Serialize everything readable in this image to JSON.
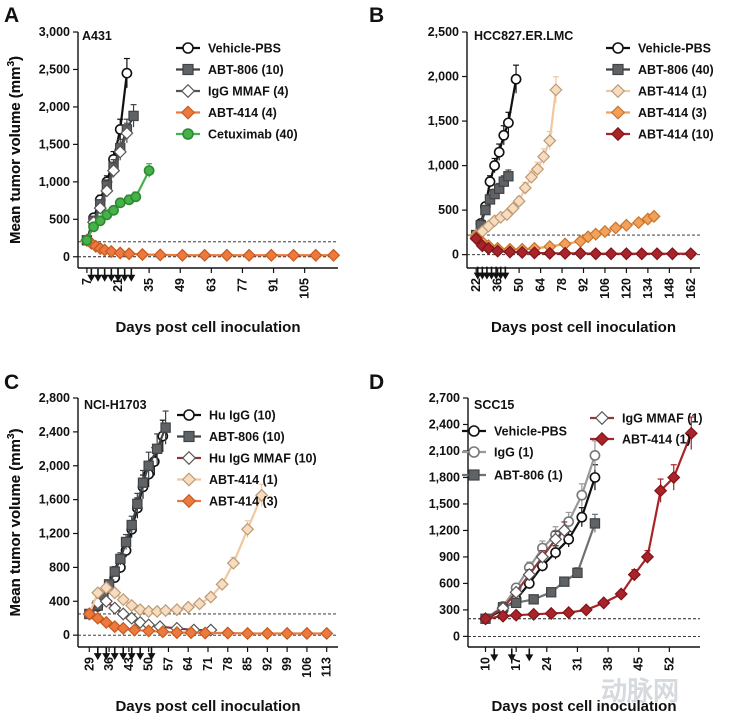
{
  "chart_data": [
    {
      "type": "line",
      "panel": "A",
      "cell_line": "A431",
      "xlabel": "Days post cell inoculation",
      "ylabel": "Mean tumor volume (mm",
      "ylabel_sup": "3",
      "ylabel_close": ")",
      "xlim": [
        3,
        120
      ],
      "ylim": [
        -150,
        3000
      ],
      "xticks": [
        7,
        21,
        35,
        49,
        63,
        77,
        91,
        105
      ],
      "yticks": [
        0,
        500,
        1000,
        1500,
        2000,
        2500,
        3000
      ],
      "ytick_labels": [
        "0",
        "500",
        "1,000",
        "1,500",
        "2,000",
        "2,500",
        "3,000"
      ],
      "threshold": 200,
      "dosing_days": [
        9,
        12,
        15,
        18,
        21,
        24,
        27
      ],
      "legend": "top-right",
      "series": [
        {
          "name": "Vehicle-PBS",
          "marker": "circle",
          "fill": "#ffffff",
          "stroke": "#111111",
          "line": "#111111",
          "x": [
            7,
            10,
            13,
            16,
            19,
            22,
            25
          ],
          "y": [
            220,
            520,
            760,
            1000,
            1300,
            1700,
            2450
          ]
        },
        {
          "name": "ABT-806 (10)",
          "marker": "square",
          "fill": "#606366",
          "stroke": "#404346",
          "line": "#404346",
          "x": [
            7,
            10,
            13,
            16,
            19,
            22,
            25,
            28
          ],
          "y": [
            220,
            480,
            700,
            950,
            1200,
            1450,
            1700,
            1880
          ]
        },
        {
          "name": "IgG MMAF (4)",
          "marker": "diamond",
          "fill": "#ffffff",
          "stroke": "#555555",
          "line": "#555555",
          "x": [
            7,
            10,
            13,
            16,
            19,
            22,
            25
          ],
          "y": [
            220,
            460,
            650,
            880,
            1150,
            1400,
            1650
          ]
        },
        {
          "name": "ABT-414 (4)",
          "marker": "diamond",
          "fill": "#ec7a3e",
          "stroke": "#c55a20",
          "line": "#ec7a3e",
          "x": [
            7,
            9,
            11,
            13,
            15,
            18,
            22,
            26,
            32,
            40,
            50,
            60,
            70,
            80,
            90,
            100,
            110,
            118
          ],
          "y": [
            220,
            180,
            140,
            110,
            90,
            70,
            50,
            40,
            30,
            25,
            20,
            20,
            20,
            20,
            20,
            20,
            20,
            20
          ]
        },
        {
          "name": "Cetuximab (40)",
          "marker": "circle",
          "fill": "#44b149",
          "stroke": "#2d8a33",
          "line": "#44b149",
          "x": [
            7,
            10,
            13,
            16,
            19,
            22,
            26,
            29,
            35
          ],
          "y": [
            220,
            400,
            480,
            560,
            620,
            720,
            760,
            800,
            1150
          ]
        }
      ]
    },
    {
      "type": "line",
      "panel": "B",
      "cell_line": "HCC827.ER.LMC",
      "xlabel": "Days post cell inoculation",
      "ylabel": "Mean tumor volume (mm",
      "ylabel_sup": "3",
      "ylabel_close": ")",
      "xlim": [
        16,
        168
      ],
      "ylim": [
        -150,
        2500
      ],
      "xticks": [
        22,
        36,
        50,
        64,
        78,
        92,
        106,
        120,
        134,
        148,
        162
      ],
      "yticks": [
        0,
        500,
        1000,
        1500,
        2000,
        2500
      ],
      "ytick_labels": [
        "0",
        "500",
        "1,000",
        "1,500",
        "2,000",
        "2,500"
      ],
      "threshold": 220,
      "dosing_days": [
        23,
        26,
        29,
        32,
        35,
        38,
        41
      ],
      "legend": "top-right",
      "series": [
        {
          "name": "Vehicle-PBS",
          "marker": "circle",
          "fill": "#ffffff",
          "stroke": "#111111",
          "line": "#111111",
          "x": [
            22,
            25,
            28,
            31,
            34,
            37,
            40,
            43,
            48
          ],
          "y": [
            220,
            350,
            540,
            820,
            1000,
            1150,
            1340,
            1480,
            1970
          ]
        },
        {
          "name": "ABT-806 (40)",
          "marker": "square",
          "fill": "#606366",
          "stroke": "#404346",
          "line": "#404346",
          "x": [
            22,
            25,
            28,
            31,
            34,
            37,
            40,
            43
          ],
          "y": [
            220,
            330,
            500,
            620,
            680,
            740,
            820,
            880
          ]
        },
        {
          "name": "ABT-414 (1)",
          "marker": "diamond",
          "fill": "#f8dcbf",
          "stroke": "#bb9a76",
          "line": "#f0c8a0",
          "x": [
            22,
            26,
            30,
            34,
            38,
            42,
            46,
            50,
            54,
            58,
            62,
            66,
            70,
            74
          ],
          "y": [
            220,
            260,
            320,
            380,
            420,
            450,
            520,
            600,
            750,
            870,
            960,
            1100,
            1280,
            1850
          ]
        },
        {
          "name": "ABT-414 (3)",
          "marker": "diamond",
          "fill": "#f2a05a",
          "stroke": "#c6742e",
          "line": "#f2a05a",
          "x": [
            22,
            26,
            30,
            36,
            44,
            52,
            60,
            70,
            80,
            90,
            95,
            100,
            106,
            113,
            120,
            128,
            134,
            138
          ],
          "y": [
            200,
            140,
            100,
            70,
            60,
            60,
            70,
            90,
            120,
            150,
            200,
            230,
            260,
            300,
            330,
            360,
            400,
            430
          ]
        },
        {
          "name": "ABT-414 (10)",
          "marker": "diamond",
          "fill": "#a9232a",
          "stroke": "#7e1519",
          "line": "#a9232a",
          "x": [
            22,
            26,
            30,
            36,
            44,
            52,
            60,
            70,
            80,
            90,
            100,
            110,
            120,
            130,
            140,
            150,
            162
          ],
          "y": [
            180,
            100,
            70,
            40,
            30,
            25,
            20,
            15,
            15,
            15,
            10,
            10,
            10,
            10,
            10,
            10,
            10
          ]
        }
      ]
    },
    {
      "type": "line",
      "panel": "C",
      "cell_line": "NCI-H1703",
      "xlabel": "Days post cell inoculation",
      "ylabel": "Mean tumor volume (mm",
      "ylabel_sup": "3",
      "ylabel_close": ")",
      "xlim": [
        25,
        117
      ],
      "ylim": [
        -140,
        2800
      ],
      "xticks": [
        29,
        36,
        43,
        50,
        57,
        64,
        71,
        78,
        85,
        92,
        99,
        106,
        113
      ],
      "yticks": [
        0,
        400,
        800,
        1200,
        1600,
        2000,
        2400,
        2800
      ],
      "ytick_labels": [
        "0",
        "400",
        "800",
        "1,200",
        "1,600",
        "2,000",
        "2,400",
        "2,800"
      ],
      "threshold": 250,
      "dosing_days": [
        32,
        35,
        38,
        41,
        44,
        47,
        51
      ],
      "legend": "top-right",
      "series": [
        {
          "name": "Hu IgG (10)",
          "marker": "circle",
          "fill": "#ffffff",
          "stroke": "#111111",
          "line": "#111111",
          "x": [
            29,
            32,
            34,
            36,
            38,
            40,
            42,
            44,
            46,
            48,
            50,
            52,
            55
          ],
          "y": [
            250,
            340,
            420,
            550,
            680,
            800,
            1000,
            1250,
            1500,
            1750,
            1900,
            2050,
            2350
          ]
        },
        {
          "name": "ABT-806 (10)",
          "marker": "square",
          "fill": "#606366",
          "stroke": "#404346",
          "line": "#404346",
          "x": [
            29,
            32,
            34,
            36,
            38,
            40,
            42,
            44,
            46,
            48,
            50,
            53,
            56
          ],
          "y": [
            250,
            350,
            450,
            600,
            750,
            900,
            1100,
            1300,
            1550,
            1800,
            2000,
            2200,
            2450
          ]
        },
        {
          "name": "Hu IgG MMAF (10)",
          "marker": "diamond",
          "fill": "#ffffff",
          "stroke": "#555555",
          "line": "#8a3a3a",
          "x": [
            29,
            32,
            35,
            38,
            41,
            44,
            47,
            50,
            54,
            60,
            66,
            72
          ],
          "y": [
            250,
            380,
            400,
            320,
            250,
            200,
            150,
            120,
            100,
            80,
            60,
            60
          ]
        },
        {
          "name": "ABT-414 (1)",
          "marker": "diamond",
          "fill": "#f8dcbf",
          "stroke": "#bb9a76",
          "line": "#f0c8a0",
          "x": [
            29,
            32,
            35,
            38,
            41,
            44,
            47,
            50,
            53,
            56,
            60,
            64,
            68,
            72,
            76,
            80,
            85,
            90
          ],
          "y": [
            250,
            500,
            560,
            500,
            420,
            350,
            300,
            280,
            280,
            290,
            300,
            330,
            370,
            450,
            600,
            850,
            1250,
            1650
          ]
        },
        {
          "name": "ABT-414 (3)",
          "marker": "diamond",
          "fill": "#ec7a3e",
          "stroke": "#c55a20",
          "line": "#ec7a3e",
          "x": [
            29,
            32,
            35,
            38,
            41,
            45,
            50,
            55,
            60,
            65,
            70,
            78,
            85,
            92,
            99,
            106,
            113
          ],
          "y": [
            250,
            200,
            150,
            100,
            80,
            60,
            50,
            40,
            30,
            30,
            25,
            25,
            20,
            20,
            20,
            20,
            20
          ]
        }
      ]
    },
    {
      "type": "line",
      "panel": "D",
      "cell_line": "SCC15",
      "xlabel": "Days post cell inoculation",
      "ylabel": "Mean tumor volume (mm",
      "ylabel_sup": "3",
      "ylabel_close": ")",
      "xlim": [
        6,
        59
      ],
      "ylim": [
        -120,
        2700
      ],
      "xticks": [
        10,
        17,
        24,
        31,
        38,
        45,
        52
      ],
      "yticks": [
        0,
        300,
        600,
        900,
        1200,
        1500,
        1800,
        2100,
        2400,
        2700
      ],
      "ytick_labels": [
        "0",
        "300",
        "600",
        "900",
        "1,200",
        "1,500",
        "1,800",
        "2,100",
        "2,400",
        "2,700"
      ],
      "threshold": 200,
      "dosing_days": [
        12,
        16,
        20
      ],
      "legend": "top",
      "series": [
        {
          "name": "Vehicle-PBS",
          "marker": "circle",
          "fill": "#ffffff",
          "stroke": "#111111",
          "line": "#111111",
          "x": [
            10,
            14,
            17,
            20,
            23,
            26,
            29,
            32,
            35
          ],
          "y": [
            200,
            300,
            420,
            600,
            800,
            950,
            1100,
            1350,
            1800
          ]
        },
        {
          "name": "IgG (1)",
          "marker": "circle",
          "fill": "#ffffff",
          "stroke": "#777777",
          "line": "#999999",
          "x": [
            10,
            14,
            17,
            20,
            23,
            26,
            29,
            32,
            35
          ],
          "y": [
            200,
            340,
            550,
            780,
            1000,
            1150,
            1300,
            1600,
            2050
          ]
        },
        {
          "name": "ABT-806 (1)",
          "marker": "square",
          "fill": "#606366",
          "stroke": "#404346",
          "line": "#707070",
          "x": [
            10,
            14,
            17,
            21,
            25,
            28,
            31,
            35
          ],
          "y": [
            200,
            330,
            380,
            420,
            500,
            620,
            720,
            1280
          ]
        },
        {
          "name": "IgG MMAF (1)",
          "marker": "diamond",
          "fill": "#ffffff",
          "stroke": "#555555",
          "line": "#8a3a3a",
          "x": [
            10,
            14,
            17,
            20,
            23,
            26,
            28
          ],
          "y": [
            200,
            320,
            500,
            700,
            900,
            1100,
            1200
          ]
        },
        {
          "name": "ABT-414 (1)",
          "marker": "diamond",
          "fill": "#a9232a",
          "stroke": "#7e1519",
          "line": "#a9232a",
          "x": [
            10,
            14,
            17,
            21,
            25,
            29,
            33,
            37,
            41,
            44,
            47,
            50,
            53,
            57
          ],
          "y": [
            200,
            230,
            240,
            250,
            260,
            270,
            300,
            380,
            480,
            700,
            900,
            1650,
            1800,
            2300
          ]
        }
      ]
    }
  ],
  "watermark": "动脉网"
}
